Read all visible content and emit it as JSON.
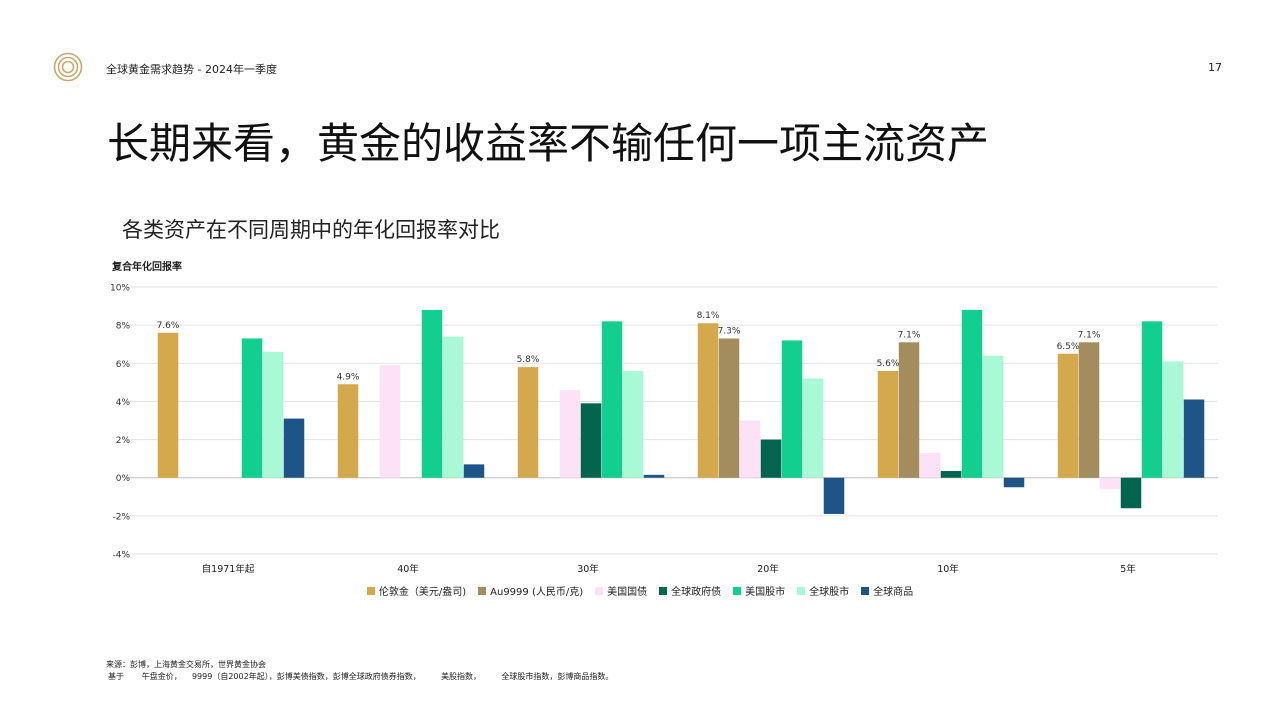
{
  "header": {
    "title": "全球黄金需求趋势 - 2024年一季度",
    "page_number": "17"
  },
  "slide": {
    "title": "长期来看，黄金的收益率不输任何一项主流资产"
  },
  "chart_data": {
    "type": "bar",
    "title": "各类资产在不同周期中的年化回报率对比",
    "ylabel": "复合年化回报率",
    "xlabel": "",
    "ylim": [
      -4,
      10
    ],
    "yticks": [
      -4,
      -2,
      0,
      2,
      4,
      6,
      8,
      10
    ],
    "ytick_labels": [
      "-4%",
      "-2%",
      "0%",
      "2%",
      "4%",
      "6%",
      "8%",
      "10%"
    ],
    "grid": true,
    "legend_position": "bottom",
    "categories": [
      "自1971年起",
      "40年",
      "30年",
      "20年",
      "10年",
      "5年"
    ],
    "series": [
      {
        "name": "伦敦金（美元/盎司)",
        "color": "#D4A94E",
        "values": [
          7.6,
          4.9,
          5.8,
          8.1,
          5.6,
          6.5
        ],
        "labels": [
          "7.6%",
          "4.9%",
          "5.8%",
          "8.1%",
          "5.6%",
          "6.5%"
        ]
      },
      {
        "name": "Au9999 (人民币/克)",
        "color": "#A38C5E",
        "values": [
          null,
          null,
          null,
          7.3,
          7.1,
          7.1
        ],
        "labels": [
          null,
          null,
          null,
          "7.3%",
          "7.1%",
          "7.1%"
        ]
      },
      {
        "name": "美国国债",
        "color": "#FDE1F6",
        "values": [
          null,
          5.9,
          4.6,
          3.0,
          1.3,
          -0.6
        ],
        "labels": [
          null,
          null,
          null,
          null,
          null,
          null
        ]
      },
      {
        "name": "全球政府债",
        "color": "#03654E",
        "values": [
          null,
          null,
          3.9,
          2.0,
          0.35,
          -1.6
        ],
        "labels": [
          null,
          null,
          null,
          null,
          null,
          null
        ]
      },
      {
        "name": "美国股市",
        "color": "#12CE8F",
        "values": [
          7.3,
          8.8,
          8.2,
          7.2,
          8.8,
          8.2
        ],
        "labels": [
          null,
          null,
          null,
          null,
          null,
          null
        ]
      },
      {
        "name": "全球股市",
        "color": "#AAF9D6",
        "values": [
          6.6,
          7.4,
          5.6,
          5.2,
          6.4,
          6.1
        ],
        "labels": [
          null,
          null,
          null,
          null,
          null,
          null
        ]
      },
      {
        "name": "全球商品",
        "color": "#1E5488",
        "values": [
          3.1,
          0.7,
          0.15,
          -1.9,
          -0.5,
          4.1
        ],
        "labels": [
          null,
          null,
          null,
          null,
          null,
          null
        ]
      }
    ]
  },
  "footer": {
    "line1": "来源：彭博，上海黄金交易所，世界黄金协会",
    "line2": "基于       午盘金价，    9999（自2002年起），彭博美债指数，彭博全球政府债券指数，        美股指数，        全球股市指数，彭博商品指数。"
  }
}
